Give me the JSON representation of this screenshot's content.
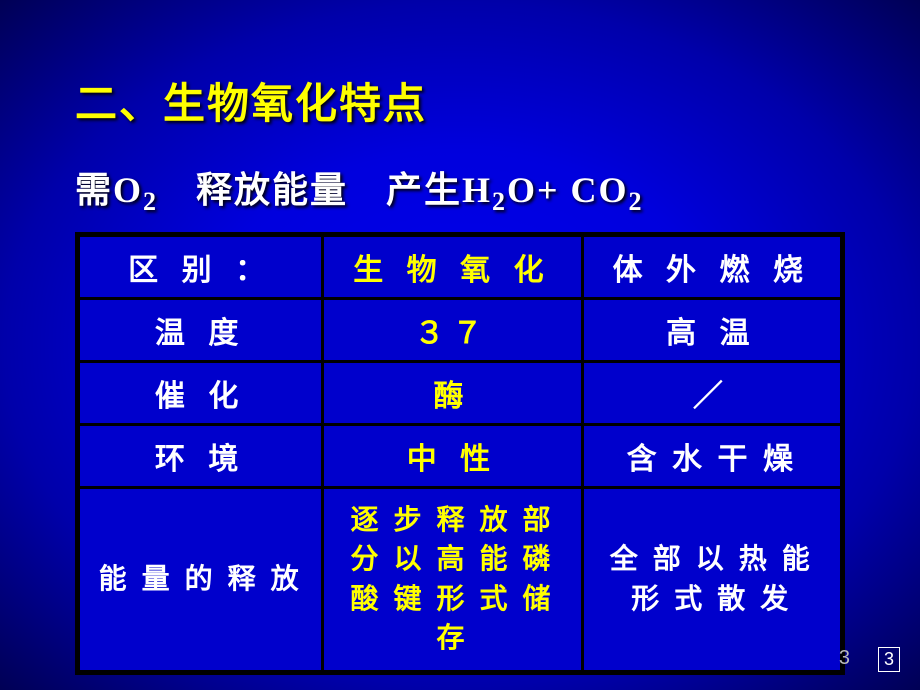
{
  "title": "二、生物氧化特点",
  "subtitle_html": "需O<sub>2</sub>　释放能量　产生H<sub>2</sub>O+ CO<sub>2</sub>",
  "table": {
    "header": {
      "c1": "区 别 ：",
      "c2": "生 物 氧 化",
      "c3": "体 外 燃 烧"
    },
    "rows": [
      {
        "c1": "温 度",
        "c2": "３７",
        "c3": "高 温"
      },
      {
        "c1": "催 化",
        "c2": "酶",
        "c3": "／"
      },
      {
        "c1": "环 境",
        "c2": "中 性",
        "c3": "含 水 干 燥"
      },
      {
        "c1": "能 量 的 释 放",
        "c2": "逐 步 释 放 部 分 以 高 能 磷 酸 键 形 式 储 存",
        "c3": "全 部 以 热 能 形 式 散 发"
      }
    ],
    "colors": {
      "col1": "#ffffff",
      "col2": "#ffff00",
      "col3": "#ffffff",
      "cell_bg": "#0000cc",
      "border": "#000000"
    }
  },
  "page_number": "3",
  "page_corner": "3"
}
